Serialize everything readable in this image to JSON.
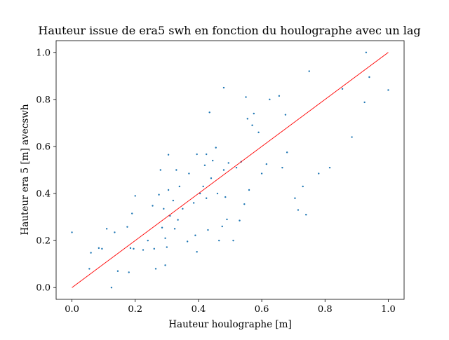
{
  "chart_data": {
    "type": "scatter",
    "title": "Hauteur issue de era5 swh en fonction du houlographe avec un lag",
    "xlabel": "Hauteur houlographe [m]",
    "ylabel": "Hauteur era 5 [m] avecswh",
    "xlim": [
      -0.05,
      1.05
    ],
    "ylim": [
      -0.05,
      1.05
    ],
    "xticks": [
      "0.0",
      "0.2",
      "0.4",
      "0.6",
      "0.8",
      "1.0"
    ],
    "yticks": [
      "0.0",
      "0.2",
      "0.4",
      "0.6",
      "0.8",
      "1.0"
    ],
    "grid": false,
    "colors": {
      "points": "#1f77b4",
      "fit_line": "#ff0000"
    },
    "series": [
      {
        "type": "scatter",
        "points": [
          [
            0.0,
            0.235
          ],
          [
            0.055,
            0.08
          ],
          [
            0.06,
            0.148
          ],
          [
            0.085,
            0.168
          ],
          [
            0.095,
            0.165
          ],
          [
            0.11,
            0.25
          ],
          [
            0.125,
            0.0
          ],
          [
            0.135,
            0.235
          ],
          [
            0.145,
            0.07
          ],
          [
            0.175,
            0.258
          ],
          [
            0.18,
            0.065
          ],
          [
            0.185,
            0.168
          ],
          [
            0.19,
            0.315
          ],
          [
            0.195,
            0.165
          ],
          [
            0.2,
            0.39
          ],
          [
            0.225,
            0.16
          ],
          [
            0.24,
            0.2
          ],
          [
            0.255,
            0.348
          ],
          [
            0.26,
            0.165
          ],
          [
            0.265,
            0.08
          ],
          [
            0.275,
            0.395
          ],
          [
            0.28,
            0.5
          ],
          [
            0.285,
            0.255
          ],
          [
            0.29,
            0.335
          ],
          [
            0.295,
            0.21
          ],
          [
            0.295,
            0.095
          ],
          [
            0.3,
            0.172
          ],
          [
            0.305,
            0.565
          ],
          [
            0.305,
            0.415
          ],
          [
            0.31,
            0.305
          ],
          [
            0.32,
            0.37
          ],
          [
            0.325,
            0.25
          ],
          [
            0.33,
            0.5
          ],
          [
            0.335,
            0.288
          ],
          [
            0.34,
            0.43
          ],
          [
            0.35,
            0.335
          ],
          [
            0.365,
            0.196
          ],
          [
            0.37,
            0.485
          ],
          [
            0.385,
            0.36
          ],
          [
            0.39,
            0.222
          ],
          [
            0.395,
            0.152
          ],
          [
            0.395,
            0.567
          ],
          [
            0.405,
            0.4
          ],
          [
            0.415,
            0.43
          ],
          [
            0.42,
            0.52
          ],
          [
            0.425,
            0.567
          ],
          [
            0.425,
            0.38
          ],
          [
            0.43,
            0.245
          ],
          [
            0.435,
            0.745
          ],
          [
            0.44,
            0.465
          ],
          [
            0.445,
            0.54
          ],
          [
            0.455,
            0.595
          ],
          [
            0.46,
            0.4
          ],
          [
            0.465,
            0.2
          ],
          [
            0.475,
            0.26
          ],
          [
            0.48,
            0.5
          ],
          [
            0.48,
            0.85
          ],
          [
            0.485,
            0.385
          ],
          [
            0.49,
            0.29
          ],
          [
            0.495,
            0.53
          ],
          [
            0.51,
            0.2
          ],
          [
            0.52,
            0.51
          ],
          [
            0.53,
            0.285
          ],
          [
            0.535,
            0.535
          ],
          [
            0.545,
            0.355
          ],
          [
            0.55,
            0.81
          ],
          [
            0.555,
            0.718
          ],
          [
            0.56,
            0.415
          ],
          [
            0.57,
            0.69
          ],
          [
            0.575,
            0.74
          ],
          [
            0.59,
            0.66
          ],
          [
            0.6,
            0.485
          ],
          [
            0.615,
            0.525
          ],
          [
            0.625,
            0.8
          ],
          [
            0.655,
            0.815
          ],
          [
            0.665,
            0.51
          ],
          [
            0.675,
            0.735
          ],
          [
            0.68,
            0.575
          ],
          [
            0.705,
            0.38
          ],
          [
            0.715,
            0.33
          ],
          [
            0.73,
            0.43
          ],
          [
            0.74,
            0.31
          ],
          [
            0.75,
            0.92
          ],
          [
            0.78,
            0.485
          ],
          [
            0.815,
            0.51
          ],
          [
            0.855,
            0.845
          ],
          [
            0.885,
            0.64
          ],
          [
            0.925,
            0.788
          ],
          [
            0.93,
            1.0
          ],
          [
            0.94,
            0.895
          ],
          [
            1.0,
            0.84
          ]
        ]
      },
      {
        "type": "line",
        "points": [
          [
            0.0,
            0.0
          ],
          [
            1.0,
            1.0
          ]
        ]
      }
    ]
  }
}
